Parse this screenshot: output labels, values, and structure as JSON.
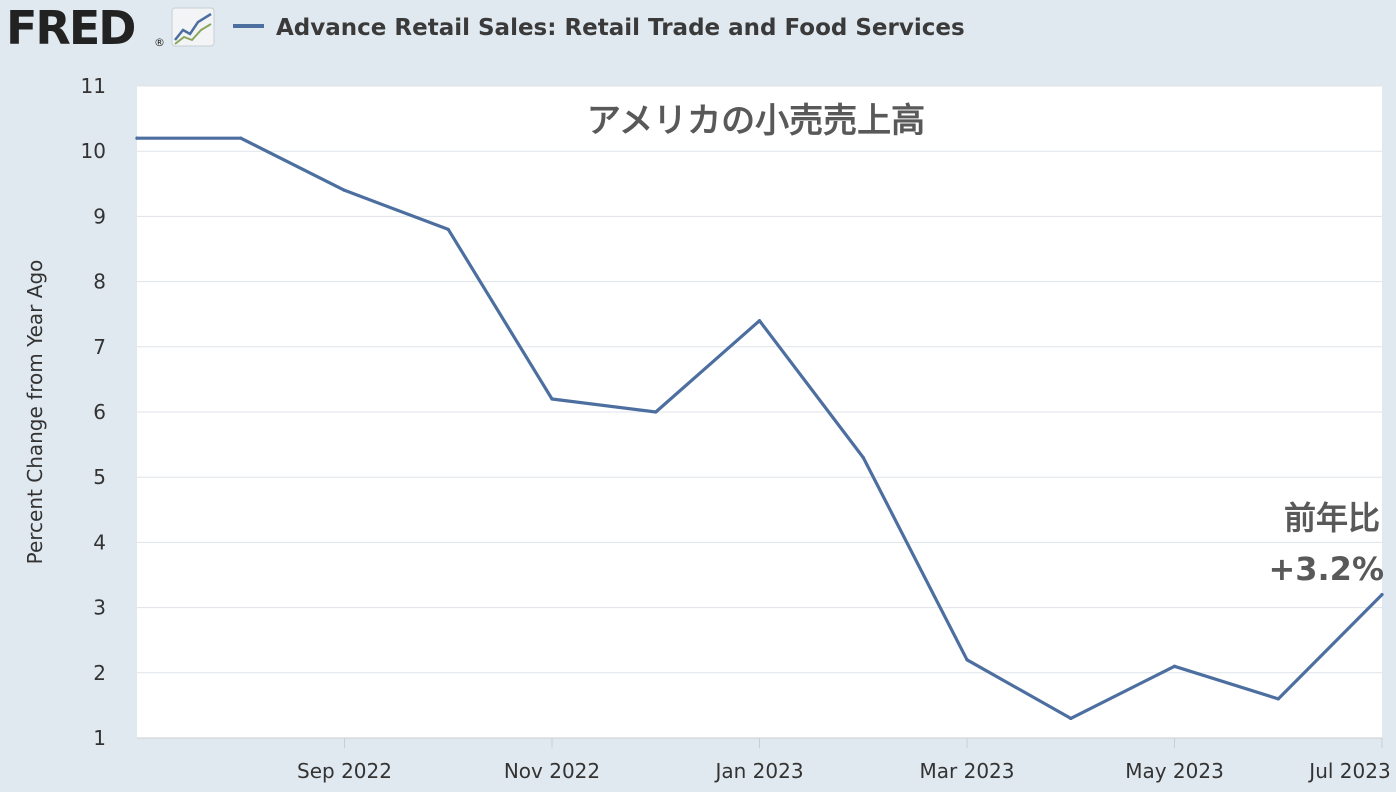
{
  "header": {
    "logo_text": "FRED",
    "logo_mark": "®",
    "logo_icon": "fred-trend-icon",
    "legend_label": "Advance Retail Sales: Retail Trade and Food Services"
  },
  "colors": {
    "background": "#e1e9f0",
    "plot_background": "#ffffff",
    "series": "#4c6fa0",
    "grid": "#dfe3e8"
  },
  "chart_data": {
    "type": "line",
    "title": "アメリカの小売売上高",
    "xlabel": "",
    "ylabel": "Percent Change from Year Ago",
    "ylim": [
      1,
      11
    ],
    "yticks": [
      1,
      2,
      3,
      4,
      5,
      6,
      7,
      8,
      9,
      10,
      11
    ],
    "grid": true,
    "x": [
      "2022-07",
      "2022-08",
      "2022-09",
      "2022-10",
      "2022-11",
      "2022-12",
      "2023-01",
      "2023-02",
      "2023-03",
      "2023-04",
      "2023-05",
      "2023-06",
      "2023-07"
    ],
    "xticks": [
      {
        "x": "2022-09",
        "label": "Sep 2022"
      },
      {
        "x": "2022-11",
        "label": "Nov 2022"
      },
      {
        "x": "2023-01",
        "label": "Jan 2023"
      },
      {
        "x": "2023-03",
        "label": "Mar 2023"
      },
      {
        "x": "2023-05",
        "label": "May 2023"
      },
      {
        "x": "2023-07",
        "label": "Jul 2023"
      }
    ],
    "series": [
      {
        "name": "Advance Retail Sales: Retail Trade and Food Services",
        "values": [
          10.2,
          10.2,
          9.4,
          8.8,
          6.2,
          6.0,
          7.4,
          5.3,
          2.2,
          1.3,
          2.1,
          1.6,
          3.2
        ]
      }
    ],
    "annotations": [
      {
        "line1": "前年比",
        "line2": "+3.2%"
      }
    ]
  }
}
